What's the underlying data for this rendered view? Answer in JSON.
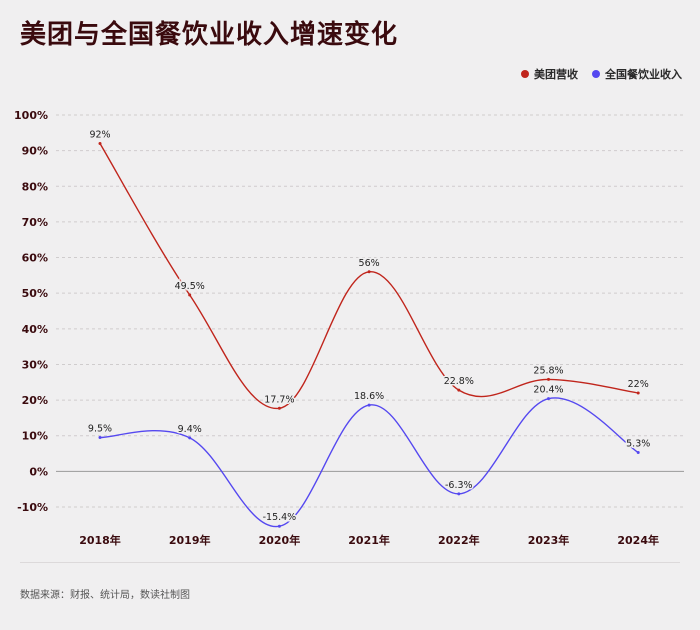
{
  "title": "美团与全国餐饮业收入增速变化",
  "source": "数据来源：财报、统计局，数读社制图",
  "chart_data": {
    "type": "line",
    "categories": [
      "2018年",
      "2019年",
      "2020年",
      "2021年",
      "2022年",
      "2023年",
      "2024年"
    ],
    "series": [
      {
        "name": "美团营收",
        "color": "#c0251c",
        "values": [
          92,
          49.5,
          17.7,
          56,
          22.8,
          25.8,
          22
        ],
        "labels": [
          "92%",
          "49.5%",
          "17.7%",
          "56%",
          "22.8%",
          "25.8%",
          "22%"
        ]
      },
      {
        "name": "全国餐饮业收入",
        "color": "#5548f0",
        "values": [
          9.5,
          9.4,
          -15.4,
          18.6,
          -6.3,
          20.4,
          5.3
        ],
        "labels": [
          "9.5%",
          "9.4%",
          "-15.4%",
          "18.6%",
          "-6.3%",
          "20.4%",
          "5.3%"
        ]
      }
    ],
    "y_ticks": [
      "100%",
      "90%",
      "80%",
      "70%",
      "60%",
      "50%",
      "40%",
      "30%",
      "20%",
      "10%",
      "0%",
      "-10%"
    ],
    "ylim": [
      -10,
      100
    ],
    "grid": true,
    "legend_position": "top-right"
  }
}
